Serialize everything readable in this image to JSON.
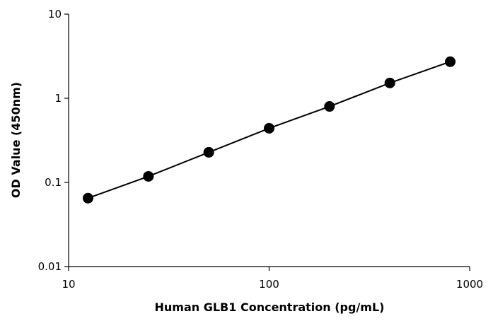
{
  "chart_data": {
    "type": "line",
    "title": "",
    "xlabel": "Human GLB1 Concentration (pg/mL)",
    "ylabel": "OD Value (450nm)",
    "x_scale": "log",
    "y_scale": "log",
    "xlim": [
      10,
      1000
    ],
    "ylim": [
      0.01,
      10
    ],
    "x_ticks": [
      10,
      100,
      1000
    ],
    "x_tick_labels": [
      "10",
      "100",
      "1000"
    ],
    "y_ticks": [
      0.01,
      0.1,
      1,
      10
    ],
    "y_tick_labels": [
      "0.01",
      "0.1",
      "1",
      "10"
    ],
    "grid": false,
    "legend": "none",
    "series": [
      {
        "x": [
          12.5,
          25,
          50,
          100,
          200,
          400,
          800
        ],
        "y": [
          0.065,
          0.118,
          0.228,
          0.44,
          0.8,
          1.52,
          2.72
        ],
        "color": "#000000",
        "marker": "circle"
      }
    ]
  }
}
